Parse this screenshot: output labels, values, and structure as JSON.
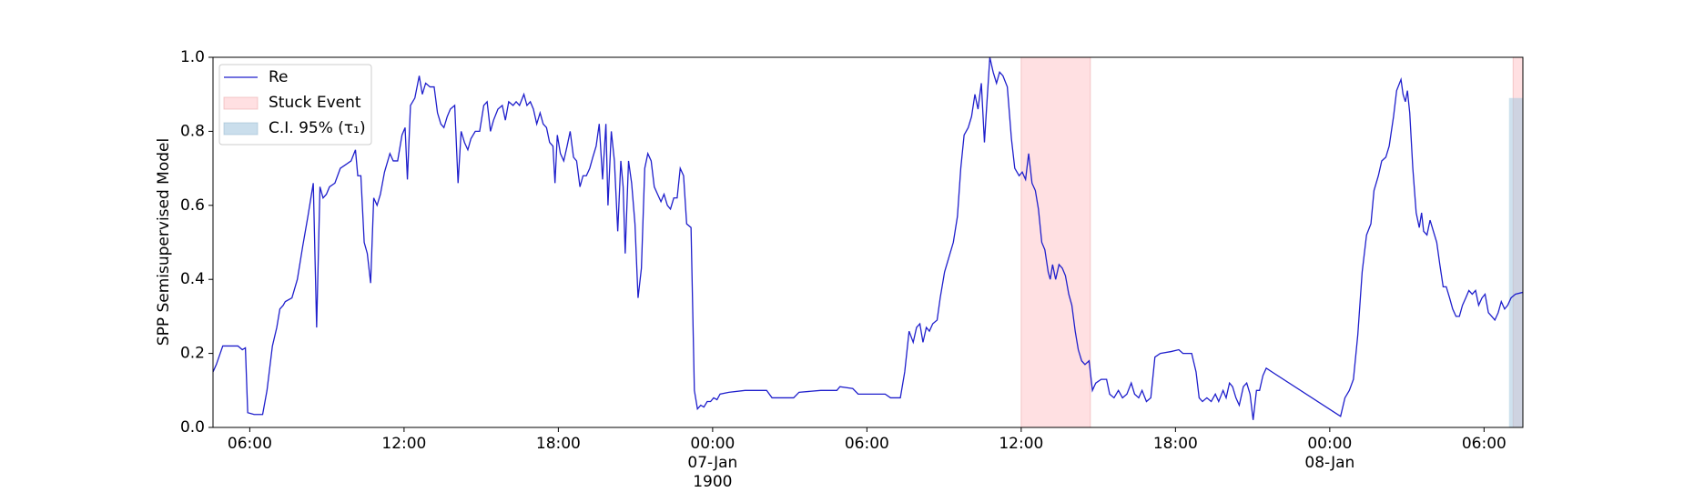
{
  "chart_data": {
    "type": "line",
    "ylabel": "SPP Semisupervised Model",
    "xlim": [
      -19.43,
      31.51
    ],
    "xticks": [
      {
        "value": -18,
        "label": "06:00"
      },
      {
        "value": -12,
        "label": "12:00"
      },
      {
        "value": -6,
        "label": "18:00"
      },
      {
        "value": 0,
        "label": "00:00\n07-Jan\n1900"
      },
      {
        "value": 6,
        "label": "06:00"
      },
      {
        "value": 12,
        "label": "12:00"
      },
      {
        "value": 18,
        "label": "18:00"
      },
      {
        "value": 24,
        "label": "00:00\n08-Jan"
      },
      {
        "value": 30,
        "label": "06:00"
      }
    ],
    "ylim": [
      0,
      1
    ],
    "yticks": [
      {
        "value": 0,
        "label": "0.0"
      },
      0.2,
      0.4,
      0.6,
      0.8,
      {
        "value": 1,
        "label": "1.0"
      }
    ],
    "legend": "upper left",
    "series": [
      {
        "name": "Re",
        "color": "#1f1fcc",
        "x": [
          -19.43,
          -19.3,
          -19.05,
          -18.46,
          -18.29,
          -18.17,
          -18.08,
          -17.83,
          -17.5,
          -17.33,
          -17.12,
          -16.95,
          -16.83,
          -16.7,
          -16.62,
          -16.36,
          -16.15,
          -15.94,
          -15.74,
          -15.53,
          -15.4,
          -15.27,
          -15.15,
          -15.02,
          -14.9,
          -14.69,
          -14.48,
          -14.27,
          -14.06,
          -13.89,
          -13.8,
          -13.68,
          -13.55,
          -13.43,
          -13.3,
          -13.18,
          -13.05,
          -12.92,
          -12.76,
          -12.55,
          -12.42,
          -12.25,
          -12.08,
          -11.96,
          -11.87,
          -11.75,
          -11.58,
          -11.41,
          -11.29,
          -11.16,
          -10.99,
          -10.83,
          -10.7,
          -10.57,
          -10.45,
          -10.32,
          -10.2,
          -10.03,
          -9.9,
          -9.78,
          -9.65,
          -9.52,
          -9.4,
          -9.23,
          -9.06,
          -8.9,
          -8.77,
          -8.64,
          -8.52,
          -8.35,
          -8.18,
          -8.06,
          -7.93,
          -7.76,
          -7.64,
          -7.51,
          -7.34,
          -7.22,
          -7.09,
          -6.97,
          -6.84,
          -6.71,
          -6.59,
          -6.46,
          -6.34,
          -6.21,
          -6.13,
          -6.04,
          -5.92,
          -5.79,
          -5.66,
          -5.54,
          -5.41,
          -5.29,
          -5.16,
          -5.04,
          -4.91,
          -4.78,
          -4.66,
          -4.53,
          -4.41,
          -4.28,
          -4.15,
          -4.07,
          -3.94,
          -3.82,
          -3.69,
          -3.57,
          -3.48,
          -3.4,
          -3.27,
          -3.15,
          -3.02,
          -2.9,
          -2.77,
          -2.64,
          -2.52,
          -2.39,
          -2.27,
          -2.14,
          -2.01,
          -1.89,
          -1.76,
          -1.64,
          -1.51,
          -1.38,
          -1.26,
          -1.13,
          -1.01,
          -0.84,
          -0.71,
          -0.59,
          -0.46,
          -0.34,
          -0.21,
          -0.08,
          0.04,
          0.17,
          0.29,
          0.63,
          1.26,
          2.1,
          2.31,
          3.15,
          3.36,
          4.2,
          4.83,
          4.95,
          5.45,
          5.66,
          6.71,
          6.92,
          7.3,
          7.47,
          7.64,
          7.8,
          7.93,
          8.06,
          8.18,
          8.31,
          8.43,
          8.56,
          8.73,
          8.85,
          9.02,
          9.19,
          9.36,
          9.52,
          9.65,
          9.78,
          9.94,
          10.07,
          10.2,
          10.32,
          10.45,
          10.57,
          10.66,
          10.78,
          10.91,
          11.04,
          11.16,
          11.29,
          11.46,
          11.62,
          11.75,
          11.92,
          12.04,
          12.17,
          12.29,
          12.42,
          12.55,
          12.67,
          12.8,
          12.92,
          13.05,
          13.13,
          13.22,
          13.34,
          13.47,
          13.6,
          13.72,
          13.85,
          13.97,
          14.1,
          14.22,
          14.35,
          14.48,
          14.64,
          14.77,
          14.9,
          15.11,
          15.32,
          15.44,
          15.61,
          15.78,
          15.94,
          16.11,
          16.28,
          16.41,
          16.57,
          16.7,
          16.87,
          17.04,
          17.2,
          17.41,
          17.83,
          18.13,
          18.29,
          18.63,
          18.8,
          18.92,
          19.05,
          19.22,
          19.39,
          19.55,
          19.68,
          19.85,
          19.97,
          20.1,
          20.22,
          20.35,
          20.48,
          20.64,
          20.77,
          20.9,
          21.02,
          21.15,
          21.27,
          21.4,
          21.53,
          24.42,
          24.59,
          24.76,
          24.92,
          25.09,
          25.26,
          25.43,
          25.6,
          25.72,
          25.89,
          26.02,
          26.18,
          26.31,
          26.48,
          26.6,
          26.77,
          26.85,
          26.94,
          27.02,
          27.11,
          27.23,
          27.36,
          27.48,
          27.57,
          27.65,
          27.78,
          27.9,
          28.03,
          28.16,
          28.28,
          28.41,
          28.53,
          28.66,
          28.78,
          28.91,
          29.04,
          29.16,
          29.29,
          29.41,
          29.54,
          29.67,
          29.79,
          29.92,
          30.04,
          30.17,
          30.3,
          30.42,
          30.55,
          30.67,
          30.8,
          30.92,
          31.05,
          31.22,
          31.51
        ],
        "values": [
          0.15,
          0.17,
          0.22,
          0.22,
          0.21,
          0.215,
          0.04,
          0.035,
          0.035,
          0.1,
          0.22,
          0.27,
          0.32,
          0.33,
          0.34,
          0.35,
          0.4,
          0.49,
          0.57,
          0.66,
          0.27,
          0.65,
          0.62,
          0.63,
          0.65,
          0.66,
          0.7,
          0.71,
          0.72,
          0.75,
          0.68,
          0.68,
          0.5,
          0.47,
          0.39,
          0.62,
          0.6,
          0.63,
          0.69,
          0.74,
          0.72,
          0.72,
          0.79,
          0.81,
          0.67,
          0.87,
          0.89,
          0.95,
          0.9,
          0.93,
          0.92,
          0.92,
          0.85,
          0.82,
          0.81,
          0.84,
          0.86,
          0.87,
          0.66,
          0.8,
          0.77,
          0.75,
          0.78,
          0.8,
          0.8,
          0.87,
          0.88,
          0.8,
          0.83,
          0.86,
          0.87,
          0.83,
          0.88,
          0.87,
          0.88,
          0.87,
          0.9,
          0.87,
          0.88,
          0.86,
          0.82,
          0.85,
          0.82,
          0.81,
          0.77,
          0.76,
          0.66,
          0.79,
          0.74,
          0.72,
          0.76,
          0.8,
          0.73,
          0.72,
          0.65,
          0.68,
          0.68,
          0.7,
          0.73,
          0.76,
          0.82,
          0.67,
          0.82,
          0.6,
          0.8,
          0.72,
          0.53,
          0.72,
          0.65,
          0.47,
          0.72,
          0.66,
          0.55,
          0.35,
          0.43,
          0.7,
          0.74,
          0.72,
          0.65,
          0.63,
          0.61,
          0.63,
          0.6,
          0.59,
          0.62,
          0.62,
          0.7,
          0.68,
          0.55,
          0.54,
          0.1,
          0.05,
          0.06,
          0.055,
          0.07,
          0.07,
          0.08,
          0.075,
          0.09,
          0.095,
          0.1,
          0.1,
          0.08,
          0.08,
          0.095,
          0.1,
          0.1,
          0.11,
          0.105,
          0.09,
          0.09,
          0.08,
          0.08,
          0.15,
          0.26,
          0.23,
          0.27,
          0.28,
          0.23,
          0.27,
          0.26,
          0.28,
          0.29,
          0.35,
          0.42,
          0.46,
          0.5,
          0.57,
          0.7,
          0.79,
          0.81,
          0.84,
          0.9,
          0.86,
          0.93,
          0.77,
          0.87,
          1.0,
          0.96,
          0.93,
          0.96,
          0.95,
          0.92,
          0.78,
          0.7,
          0.68,
          0.69,
          0.67,
          0.74,
          0.66,
          0.64,
          0.59,
          0.5,
          0.48,
          0.42,
          0.4,
          0.44,
          0.4,
          0.44,
          0.43,
          0.41,
          0.36,
          0.33,
          0.26,
          0.21,
          0.18,
          0.17,
          0.18,
          0.1,
          0.12,
          0.13,
          0.13,
          0.09,
          0.08,
          0.1,
          0.08,
          0.09,
          0.12,
          0.09,
          0.08,
          0.1,
          0.07,
          0.08,
          0.19,
          0.2,
          0.205,
          0.21,
          0.2,
          0.2,
          0.15,
          0.08,
          0.07,
          0.08,
          0.07,
          0.09,
          0.07,
          0.1,
          0.08,
          0.12,
          0.11,
          0.08,
          0.06,
          0.11,
          0.12,
          0.09,
          0.02,
          0.1,
          0.1,
          0.14,
          0.16,
          0.03,
          0.08,
          0.1,
          0.13,
          0.25,
          0.42,
          0.52,
          0.55,
          0.64,
          0.68,
          0.72,
          0.73,
          0.76,
          0.84,
          0.91,
          0.94,
          0.9,
          0.88,
          0.91,
          0.85,
          0.7,
          0.58,
          0.54,
          0.58,
          0.53,
          0.52,
          0.56,
          0.53,
          0.5,
          0.44,
          0.38,
          0.38,
          0.35,
          0.32,
          0.3,
          0.3,
          0.33,
          0.35,
          0.37,
          0.36,
          0.37,
          0.33,
          0.35,
          0.36,
          0.31,
          0.3,
          0.29,
          0.31,
          0.34,
          0.32,
          0.33,
          0.35,
          0.36,
          0.365
        ]
      }
    ],
    "stuck_events": {
      "name": "Stuck Event",
      "color": "#ffcccf",
      "spans": [
        [
          12.0,
          14.69
        ],
        [
          31.13,
          31.51
        ]
      ]
    },
    "confidence_interval": {
      "name": "C.I. 95% (τ₁)",
      "color": "#a6c8e0",
      "x": [
        30.97,
        31.51
      ],
      "lower": 0,
      "upper": 0.89
    }
  }
}
